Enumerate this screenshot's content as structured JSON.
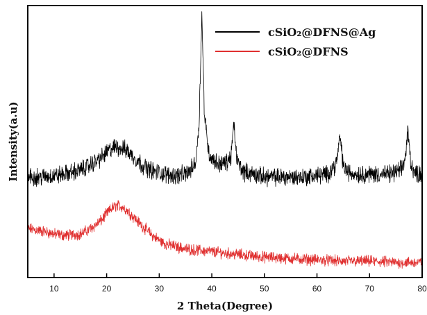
{
  "chart_data": {
    "type": "line",
    "title": "",
    "xlabel": "2 Theta(Degree)",
    "ylabel": "Intensity(a.u)",
    "xlim": [
      5,
      80
    ],
    "ylim": [
      0,
      100
    ],
    "x_ticks": [
      10,
      20,
      30,
      40,
      50,
      60,
      70,
      80
    ],
    "y_ticks_labeled": false,
    "grid": false,
    "legend_position": "top-right",
    "series": [
      {
        "name": "cSiO₂@DFNS@Ag",
        "color": "#000000",
        "x": [
          5,
          8,
          10,
          12,
          15,
          17,
          19,
          20,
          21,
          22,
          23,
          24,
          25,
          27,
          29,
          31,
          33,
          35,
          36,
          37,
          37.6,
          38.1,
          38.6,
          39.5,
          41,
          42.5,
          43.6,
          44.2,
          44.8,
          46,
          48,
          50,
          52,
          55,
          58,
          60,
          62,
          63.7,
          64.4,
          65,
          66,
          68,
          70,
          72,
          74,
          76,
          76.8,
          77.3,
          77.8,
          78.5,
          80
        ],
        "values": [
          37,
          37,
          37.5,
          38,
          39.5,
          41.5,
          44,
          46,
          47.5,
          48,
          47.5,
          46.5,
          44.5,
          41,
          39,
          38,
          37.5,
          38,
          39.5,
          43,
          58,
          97,
          60,
          45,
          42,
          42,
          44,
          56,
          43,
          39,
          38,
          37,
          37,
          37,
          37,
          37.5,
          38,
          42,
          52,
          41,
          38.5,
          38,
          38,
          38,
          38,
          39.5,
          44,
          54,
          43,
          38.5,
          38
        ]
      },
      {
        "name": "cSiO₂@DFNS",
        "color": "#e03030",
        "x": [
          5,
          8,
          10,
          12,
          15,
          17,
          19,
          20,
          21,
          22,
          23,
          24,
          25,
          27,
          29,
          31,
          33,
          35,
          40,
          45,
          50,
          55,
          60,
          65,
          70,
          75,
          80
        ],
        "values": [
          18,
          17,
          16,
          15.5,
          16,
          18,
          21,
          23.5,
          25.5,
          26.5,
          26,
          24.5,
          22.5,
          18.5,
          15,
          12.5,
          11.5,
          10.5,
          9.5,
          8.5,
          7.5,
          7,
          6.5,
          6,
          6,
          5.5,
          5.5
        ]
      }
    ]
  }
}
